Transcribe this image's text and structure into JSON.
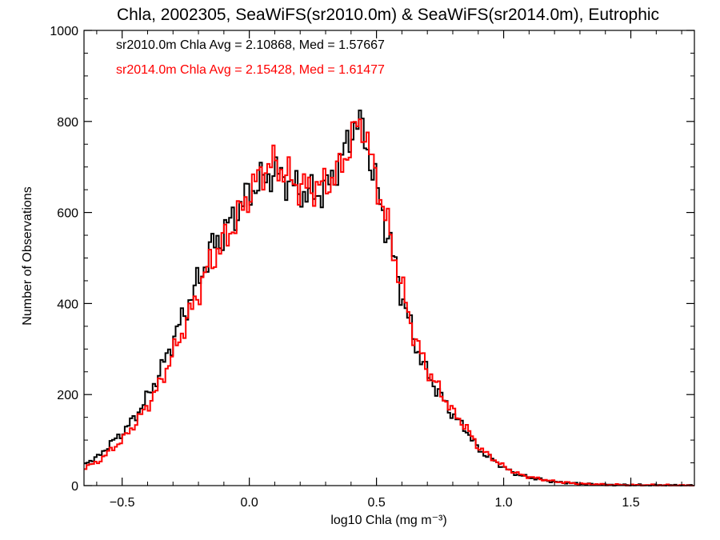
{
  "chart_data": {
    "type": "line",
    "title": "Chla, 2002305, SeaWiFS(sr2010.0m) & SeaWiFS(sr2014.0m), Eutrophic",
    "xlabel": "log10 Chla (mg m⁻³)",
    "ylabel": "Number of Observations",
    "xlim": [
      -0.65,
      1.75
    ],
    "ylim": [
      0,
      1000
    ],
    "xticks": [
      -0.5,
      0.0,
      0.5,
      1.0,
      1.5
    ],
    "xtick_labels": [
      "−0.5",
      "0.0",
      "0.5",
      "1.0",
      "1.5"
    ],
    "yticks": [
      0,
      200,
      400,
      600,
      800,
      1000
    ],
    "ytick_labels": [
      "0",
      "200",
      "400",
      "600",
      "800",
      "1000"
    ],
    "grid": false,
    "annotations": [
      {
        "text": "sr2010.0m Chla Avg = 2.10868, Med = 1.57667",
        "color": "#000000"
      },
      {
        "text": "sr2014.0m Chla Avg = 2.15428, Med = 1.61477",
        "color": "#ff0000"
      }
    ],
    "series": [
      {
        "color": "#000000",
        "step": "histogram",
        "points": [
          [
            -0.65,
            50
          ],
          [
            -0.6,
            60
          ],
          [
            -0.55,
            90
          ],
          [
            -0.5,
            115
          ],
          [
            -0.45,
            150
          ],
          [
            -0.4,
            195
          ],
          [
            -0.35,
            250
          ],
          [
            -0.3,
            320
          ],
          [
            -0.25,
            385
          ],
          [
            -0.2,
            450
          ],
          [
            -0.15,
            520
          ],
          [
            -0.1,
            555
          ],
          [
            -0.05,
            600
          ],
          [
            0.0,
            645
          ],
          [
            0.05,
            670
          ],
          [
            0.1,
            690
          ],
          [
            0.15,
            670
          ],
          [
            0.2,
            645
          ],
          [
            0.25,
            640
          ],
          [
            0.3,
            650
          ],
          [
            0.35,
            700
          ],
          [
            0.38,
            745
          ],
          [
            0.42,
            800
          ],
          [
            0.45,
            780
          ],
          [
            0.48,
            700
          ],
          [
            0.52,
            610
          ],
          [
            0.55,
            540
          ],
          [
            0.6,
            420
          ],
          [
            0.65,
            315
          ],
          [
            0.7,
            245
          ],
          [
            0.75,
            200
          ],
          [
            0.8,
            155
          ],
          [
            0.85,
            125
          ],
          [
            0.9,
            80
          ],
          [
            0.95,
            60
          ],
          [
            1.0,
            40
          ],
          [
            1.05,
            25
          ],
          [
            1.1,
            18
          ],
          [
            1.2,
            8
          ],
          [
            1.3,
            4
          ],
          [
            1.4,
            2
          ],
          [
            1.5,
            1
          ],
          [
            1.6,
            1
          ],
          [
            1.75,
            0
          ]
        ]
      },
      {
        "color": "#ff0000",
        "step": "histogram",
        "points": [
          [
            -0.65,
            40
          ],
          [
            -0.6,
            50
          ],
          [
            -0.55,
            75
          ],
          [
            -0.5,
            100
          ],
          [
            -0.45,
            135
          ],
          [
            -0.4,
            175
          ],
          [
            -0.35,
            225
          ],
          [
            -0.3,
            290
          ],
          [
            -0.25,
            355
          ],
          [
            -0.2,
            425
          ],
          [
            -0.15,
            495
          ],
          [
            -0.1,
            535
          ],
          [
            -0.05,
            585
          ],
          [
            0.0,
            640
          ],
          [
            0.05,
            690
          ],
          [
            0.1,
            710
          ],
          [
            0.15,
            680
          ],
          [
            0.2,
            655
          ],
          [
            0.25,
            655
          ],
          [
            0.3,
            660
          ],
          [
            0.35,
            690
          ],
          [
            0.38,
            725
          ],
          [
            0.42,
            790
          ],
          [
            0.45,
            790
          ],
          [
            0.48,
            715
          ],
          [
            0.52,
            625
          ],
          [
            0.55,
            555
          ],
          [
            0.6,
            435
          ],
          [
            0.65,
            325
          ],
          [
            0.7,
            255
          ],
          [
            0.75,
            208
          ],
          [
            0.8,
            162
          ],
          [
            0.85,
            130
          ],
          [
            0.9,
            85
          ],
          [
            0.95,
            63
          ],
          [
            1.0,
            42
          ],
          [
            1.05,
            27
          ],
          [
            1.1,
            19
          ],
          [
            1.2,
            9
          ],
          [
            1.3,
            4
          ],
          [
            1.4,
            2
          ],
          [
            1.5,
            1
          ],
          [
            1.6,
            1
          ],
          [
            1.75,
            0
          ]
        ]
      }
    ]
  }
}
